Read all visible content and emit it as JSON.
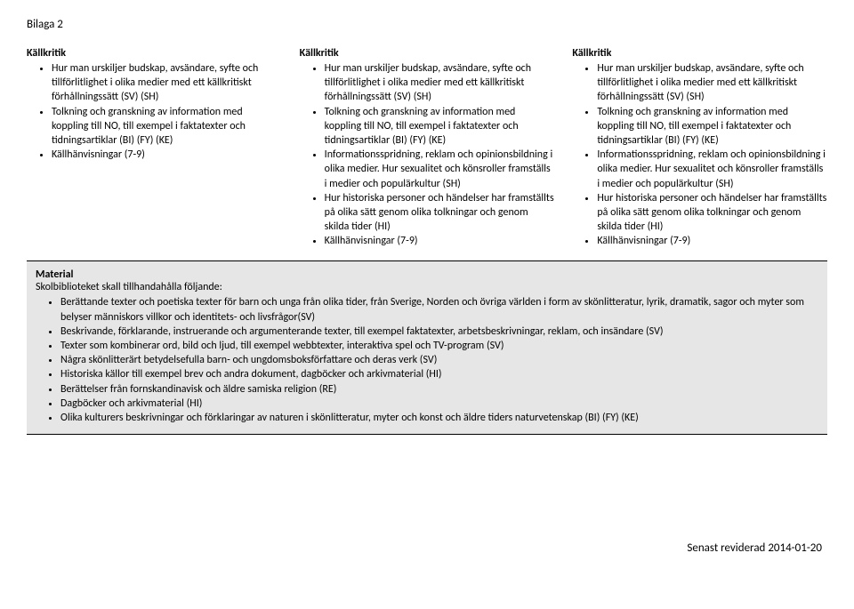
{
  "header": "Bilaga 2",
  "columns": [
    {
      "title": "Källkritik",
      "items": [
        "Hur man urskiljer budskap, avsändare, syfte och tillförlitlighet i olika medier med ett källkritiskt förhållningssätt (SV) (SH)",
        "Tolkning och granskning av information med koppling till NO, till exempel i faktatexter och tidningsartiklar (BI) (FY) (KE)",
        "Källhänvisningar (7-9)"
      ]
    },
    {
      "title": "Källkritik",
      "items": [
        "Hur man urskiljer budskap, avsändare, syfte och tillförlitlighet i olika medier med ett källkritiskt förhållningssätt (SV) (SH)",
        "Tolkning och granskning av information med koppling till NO, till exempel i faktatexter och tidningsartiklar (BI) (FY) (KE)",
        "Informationsspridning, reklam och opinionsbildning i olika medier. Hur sexualitet och könsroller framställs i medier och populärkultur (SH)",
        "Hur historiska personer och händelser har framställts på olika sätt genom olika tolkningar och genom skilda tider (HI)",
        "Källhänvisningar (7-9)"
      ]
    },
    {
      "title": "Källkritik",
      "items": [
        "Hur man urskiljer budskap, avsändare, syfte och tillförlitlighet i olika medier med ett källkritiskt förhållningssätt (SV) (SH)",
        "Tolkning och granskning av information med koppling till NO, till exempel i faktatexter och tidningsartiklar (BI) (FY) (KE)",
        "Informationsspridning, reklam och opinionsbildning i olika medier. Hur sexualitet och könsroller framställs i medier och populärkultur (SH)",
        "Hur historiska personer och händelser har framställts på olika sätt genom olika tolkningar och genom skilda tider (HI)",
        "Källhänvisningar (7-9)"
      ]
    }
  ],
  "material": {
    "title": "Material",
    "subtitle": "Skolbiblioteket skall tillhandahålla följande:",
    "items": [
      "Berättande texter och poetiska texter för barn och unga från olika tider, från Sverige, Norden och övriga världen i form av skönlitteratur, lyrik, dramatik, sagor och myter som belyser människors villkor och identitets- och livsfrågor(SV)",
      "Beskrivande, förklarande, instruerande och argumenterande texter, till exempel faktatexter, arbetsbeskrivningar, reklam, och insändare (SV)",
      "Texter som kombinerar ord, bild och ljud, till exempel webbtexter, interaktiva spel och TV-program (SV)",
      "Några skönlitterärt betydelsefulla barn- och ungdomsboksförfattare och deras verk (SV)",
      "Historiska källor till exempel brev och andra dokument, dagböcker och arkivmaterial (HI)",
      "Berättelser från fornskandinavisk och äldre samiska religion (RE)",
      "Dagböcker och arkivmaterial (HI)",
      "Olika kulturers beskrivningar och förklaringar av naturen i skönlitteratur, myter och konst och äldre tiders naturvetenskap (BI) (FY) (KE)"
    ]
  },
  "footer": "Senast reviderad 2014-01-20"
}
